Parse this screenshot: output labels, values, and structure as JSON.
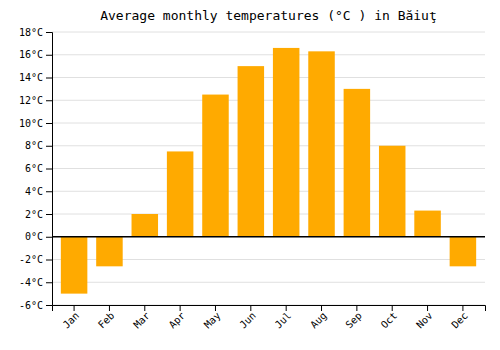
{
  "chart_data": {
    "type": "bar",
    "title": "Average monthly temperatures (°C ) in Băiuţ",
    "categories": [
      "Jan",
      "Feb",
      "Mar",
      "Apr",
      "May",
      "Jun",
      "Jul",
      "Aug",
      "Sep",
      "Oct",
      "Nov",
      "Dec"
    ],
    "values": [
      -5.0,
      -2.6,
      2.0,
      7.5,
      12.5,
      15.0,
      16.6,
      16.3,
      13.0,
      8.0,
      2.3,
      -2.6
    ],
    "color": "#FFAA00",
    "ylim": [
      -6,
      18
    ],
    "yticks": [
      {
        "value": -6,
        "label": "-6°C"
      },
      {
        "value": -4,
        "label": "-4°C"
      },
      {
        "value": -2,
        "label": "-2°C"
      },
      {
        "value": 0,
        "label": "0°C"
      },
      {
        "value": 2,
        "label": "2°C"
      },
      {
        "value": 4,
        "label": "4°C"
      },
      {
        "value": 6,
        "label": "6°C"
      },
      {
        "value": 8,
        "label": "8°C"
      },
      {
        "value": 10,
        "label": "10°C"
      },
      {
        "value": 12,
        "label": "12°C"
      },
      {
        "value": 14,
        "label": "14°C"
      },
      {
        "value": 16,
        "label": "16°C"
      },
      {
        "value": 18,
        "label": "18°C"
      }
    ],
    "grid": true
  }
}
